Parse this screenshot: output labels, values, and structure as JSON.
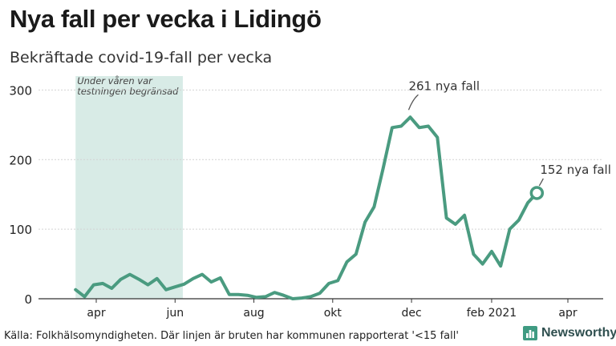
{
  "header": {
    "title": "Nya fall per vecka i Lidingö",
    "subtitle": "Bekräftade covid-19-fall per vecka"
  },
  "footer": {
    "source": "Källa: Folkhälsomyndigheten. Där linjen är bruten har kommunen rapporterat '<15 fall'",
    "brand": "Newsworthy"
  },
  "colors": {
    "line": "#4a9b80",
    "shade": "#d8ebe6",
    "grid": "#d3d3d3",
    "brand": "#3f9b82"
  },
  "icons": {
    "brand": "newsworthy-logo-icon"
  },
  "chart_data": {
    "type": "line",
    "title": "Bekräftade covid-19-fall per vecka",
    "ylim": [
      0,
      320
    ],
    "yticks": [
      0,
      100,
      200,
      300
    ],
    "xticks": [
      {
        "label": "apr",
        "date": "2020-04-01"
      },
      {
        "label": "jun",
        "date": "2020-06-01"
      },
      {
        "label": "aug",
        "date": "2020-08-01"
      },
      {
        "label": "okt",
        "date": "2020-10-01"
      },
      {
        "label": "dec",
        "date": "2020-12-01"
      },
      {
        "label": "feb 2021",
        "date": "2021-02-01"
      },
      {
        "label": "apr",
        "date": "2021-04-01"
      }
    ],
    "x": [
      "2020-03-16",
      "2020-03-23",
      "2020-03-30",
      "2020-04-06",
      "2020-04-13",
      "2020-04-20",
      "2020-04-27",
      "2020-05-04",
      "2020-05-11",
      "2020-05-18",
      "2020-05-25",
      "2020-06-01",
      "2020-06-08",
      "2020-06-15",
      "2020-06-22",
      "2020-06-29",
      "2020-07-06",
      "2020-07-13",
      "2020-07-20",
      "2020-07-27",
      "2020-08-03",
      "2020-08-10",
      "2020-08-17",
      "2020-08-24",
      "2020-08-31",
      "2020-09-07",
      "2020-09-14",
      "2020-09-21",
      "2020-09-28",
      "2020-10-05",
      "2020-10-12",
      "2020-10-19",
      "2020-10-26",
      "2020-11-02",
      "2020-11-09",
      "2020-11-16",
      "2020-11-23",
      "2020-11-30",
      "2020-12-07",
      "2020-12-14",
      "2020-12-21",
      "2020-12-28",
      "2021-01-04",
      "2021-01-11",
      "2021-01-18",
      "2021-01-25",
      "2021-02-01",
      "2021-02-08",
      "2021-02-15",
      "2021-02-22",
      "2021-03-01",
      "2021-03-08"
    ],
    "series": [
      {
        "values": [
          13,
          3,
          20,
          22,
          15,
          28,
          35,
          28,
          20,
          29,
          13,
          17,
          21,
          29,
          35,
          24,
          30,
          6,
          6,
          5,
          2,
          3,
          9,
          5,
          0,
          1,
          3,
          8,
          22,
          26,
          53,
          64,
          110,
          132,
          187,
          246,
          248,
          261,
          246,
          248,
          232,
          116,
          107,
          120,
          64,
          50,
          68,
          47,
          100,
          113,
          138,
          152
        ]
      }
    ],
    "shaded_region": {
      "from": "2020-03-16",
      "to": "2020-06-07",
      "label_lines": [
        "Under våren var",
        "testningen begränsad"
      ]
    },
    "annotations": [
      {
        "text": "261 nya fall",
        "x": "2020-11-30",
        "y": 261
      },
      {
        "text": "152 nya fall",
        "x": "2021-03-08",
        "y": 152,
        "end_marker": true
      }
    ],
    "grid": true
  }
}
